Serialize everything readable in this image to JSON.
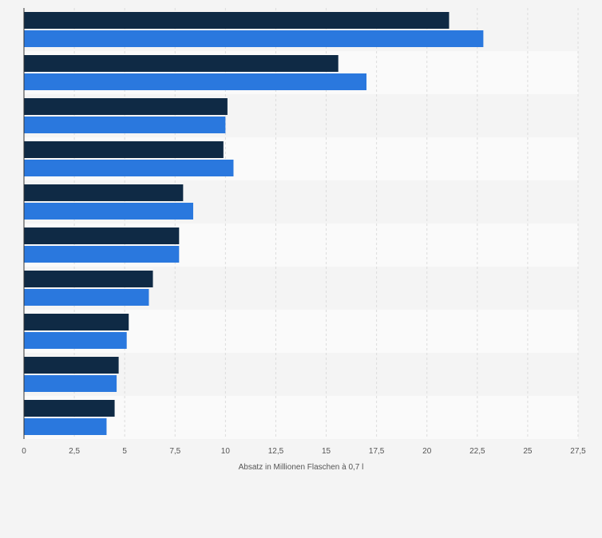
{
  "chart_data": {
    "type": "bar",
    "orientation": "horizontal",
    "title": "",
    "xlabel": "Absatz in Millionen Flaschen à 0,7 l",
    "ylabel": "",
    "xlim": [
      0,
      27.5
    ],
    "x_ticks": [
      "0",
      "2,5",
      "5",
      "7,5",
      "10",
      "12,5",
      "15",
      "17,5",
      "20",
      "22,5",
      "25",
      "27,5"
    ],
    "grid": true,
    "legend": "none",
    "categories": [
      "",
      "",
      "",
      "",
      "",
      "",
      "",
      "",
      "",
      ""
    ],
    "series": [
      {
        "color": "#0f2a45",
        "values": [
          21.1,
          15.6,
          10.1,
          9.9,
          7.9,
          7.7,
          6.4,
          5.2,
          4.7,
          4.5
        ]
      },
      {
        "color": "#2a78de",
        "values": [
          22.8,
          17.0,
          10.0,
          10.4,
          8.4,
          7.7,
          6.2,
          5.1,
          4.6,
          4.1
        ]
      }
    ],
    "colors": {
      "background": "#f4f4f4",
      "band_light": "#fafafa",
      "gridline": "#dcdcdc",
      "axis": "#333333",
      "tick_text": "#555555"
    }
  }
}
